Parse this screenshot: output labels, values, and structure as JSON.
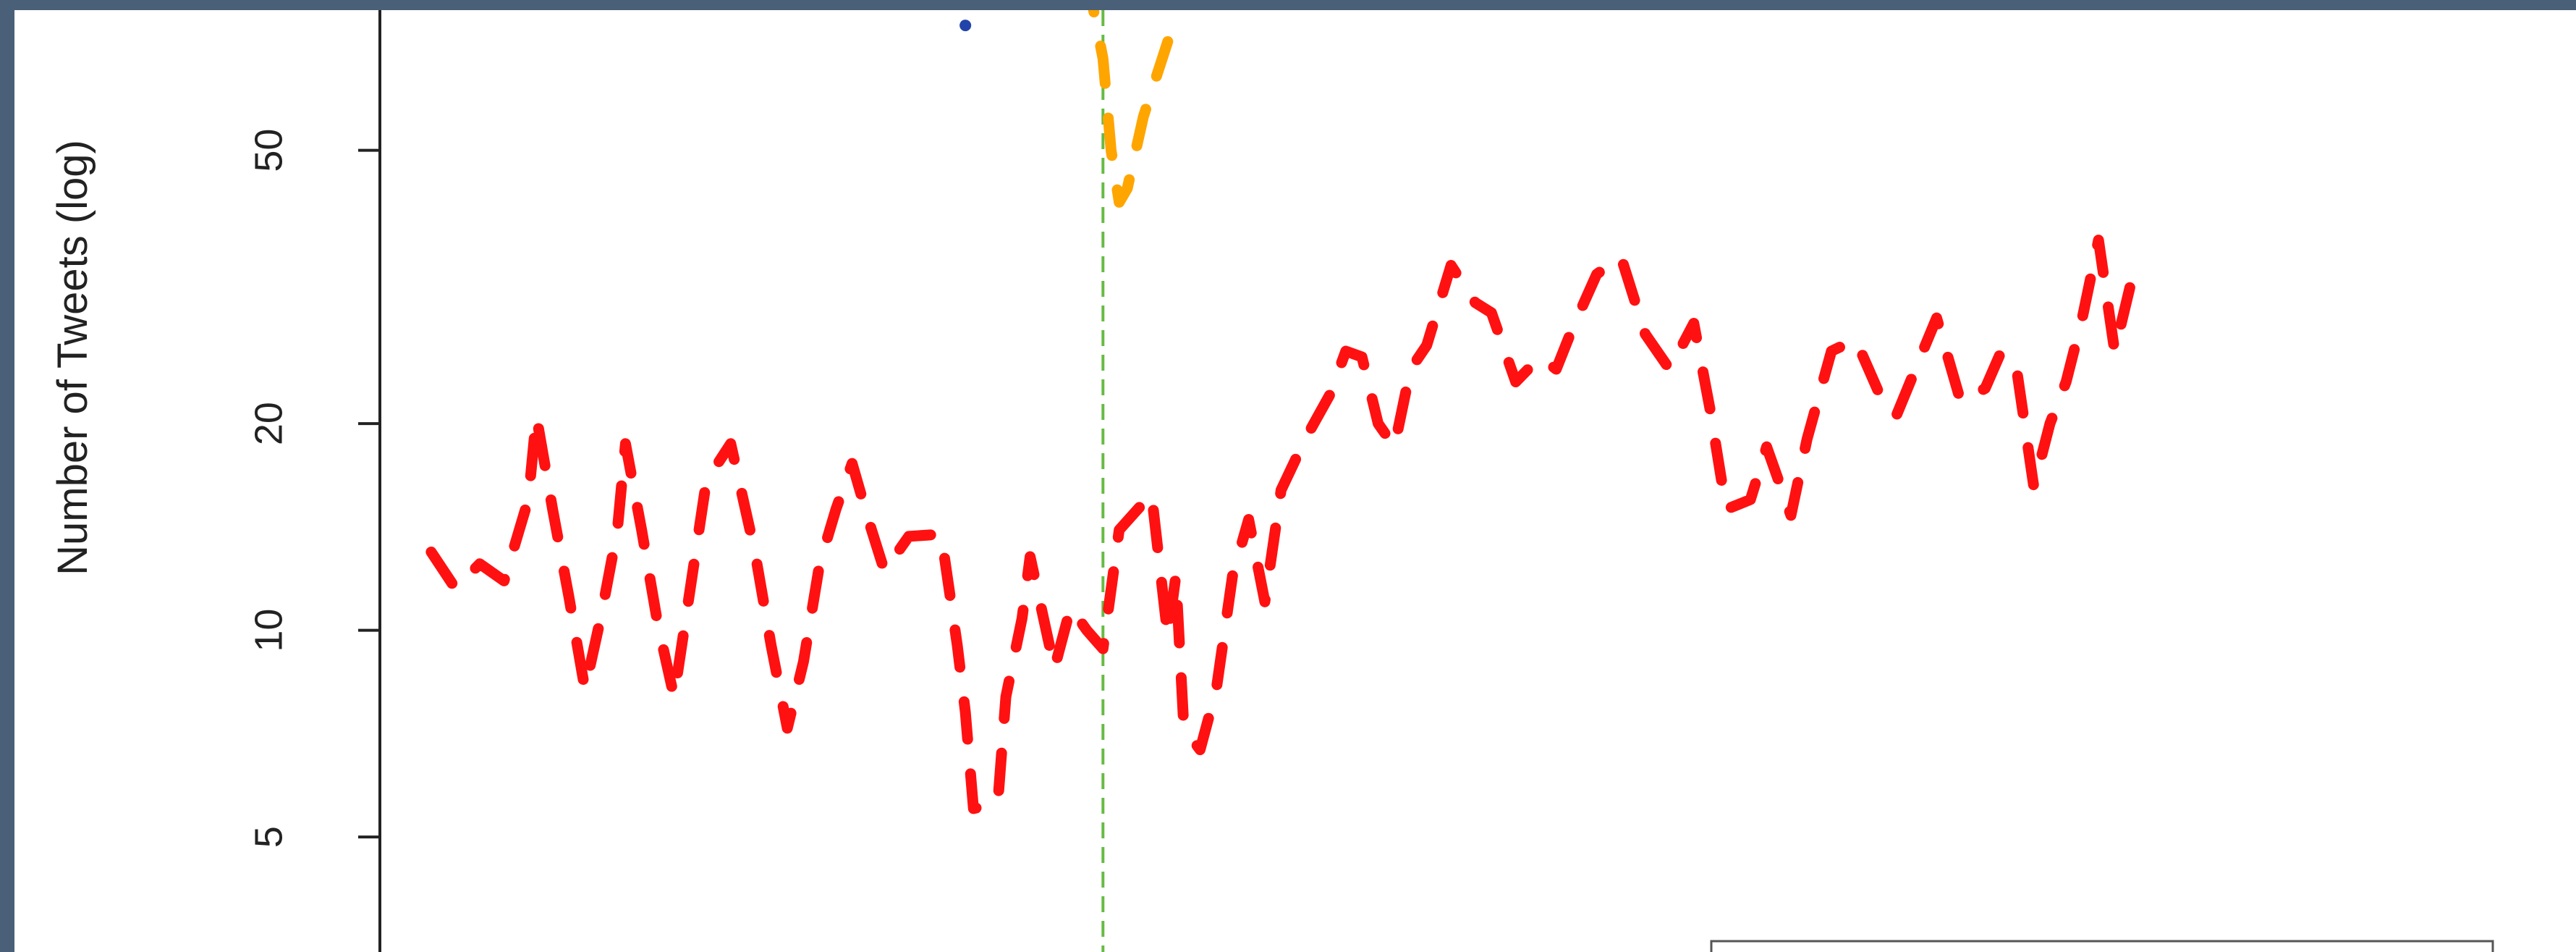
{
  "chart_data": {
    "type": "line",
    "ylabel": "Number of Tweets (log)",
    "yscale": "log",
    "ylim": [
      3.4,
      80
    ],
    "yticks": [
      {
        "value": 5,
        "label": "5"
      },
      {
        "value": 10,
        "label": "10"
      },
      {
        "value": 20,
        "label": "20"
      },
      {
        "value": 50,
        "label": "50"
      }
    ],
    "xlim": [
      0,
      270
    ],
    "event_marker": {
      "x": 88,
      "style": "dashed",
      "color": "#66bb44"
    },
    "legend_visible": "bottom-right, partially visible",
    "series": [
      {
        "color": "#ff1111",
        "style": "dashed",
        "values": [
          [
            5,
            13
          ],
          [
            8,
            11.5
          ],
          [
            11,
            12.5
          ],
          [
            14,
            11.8
          ],
          [
            17,
            15.5
          ],
          [
            18,
            20.5
          ],
          [
            20,
            15
          ],
          [
            22,
            11.2
          ],
          [
            24,
            8.2
          ],
          [
            26,
            10.5
          ],
          [
            28,
            14
          ],
          [
            29,
            18.7
          ],
          [
            31,
            14
          ],
          [
            33,
            10.2
          ],
          [
            35,
            8
          ],
          [
            37,
            11.5
          ],
          [
            39,
            16.5
          ],
          [
            42,
            18.7
          ],
          [
            45,
            13
          ],
          [
            47,
            9.5
          ],
          [
            49,
            7.2
          ],
          [
            51,
            9
          ],
          [
            53,
            12.5
          ],
          [
            55,
            15
          ],
          [
            57,
            17.5
          ],
          [
            59,
            14.5
          ],
          [
            61,
            12.2
          ],
          [
            64,
            13.7
          ],
          [
            68,
            13.8
          ],
          [
            70,
            9.5
          ],
          [
            71,
            7.6
          ],
          [
            72,
            5.5
          ],
          [
            75,
            5.6
          ],
          [
            76,
            8
          ],
          [
            78,
            10.4
          ],
          [
            79,
            12.8
          ],
          [
            82,
            8.8
          ],
          [
            84,
            10.8
          ],
          [
            86,
            10
          ],
          [
            88,
            9.4
          ],
          [
            90,
            14
          ],
          [
            94,
            15.8
          ],
          [
            96,
            9.8
          ],
          [
            97,
            12
          ],
          [
            98,
            7.2
          ],
          [
            100,
            6.7
          ],
          [
            102,
            8.2
          ],
          [
            104,
            12
          ],
          [
            106,
            14.5
          ],
          [
            108,
            11
          ],
          [
            110,
            16
          ],
          [
            113,
            19
          ],
          [
            116,
            22
          ],
          [
            118,
            25.5
          ],
          [
            120,
            25
          ],
          [
            122,
            20
          ],
          [
            124,
            18.5
          ],
          [
            126,
            24
          ],
          [
            128,
            26
          ],
          [
            131,
            34
          ],
          [
            134,
            30
          ],
          [
            136,
            29
          ],
          [
            139,
            23
          ],
          [
            142,
            25
          ],
          [
            144,
            24
          ],
          [
            146,
            27.5
          ],
          [
            149,
            33
          ],
          [
            152,
            35
          ],
          [
            155,
            27
          ],
          [
            158,
            24
          ],
          [
            161,
            28
          ],
          [
            163,
            21
          ],
          [
            165,
            15
          ],
          [
            168,
            15.5
          ],
          [
            170,
            18.5
          ],
          [
            173,
            14.7
          ],
          [
            175,
            19
          ],
          [
            178,
            25.5
          ],
          [
            181,
            26.5
          ],
          [
            184,
            22
          ],
          [
            186,
            20.5
          ],
          [
            189,
            25
          ],
          [
            191,
            28.5
          ],
          [
            194,
            21.5
          ],
          [
            197,
            22.5
          ],
          [
            199,
            25.5
          ],
          [
            201,
            23.5
          ],
          [
            203,
            16.2
          ],
          [
            205,
            20
          ],
          [
            207,
            23
          ],
          [
            209,
            28.5
          ],
          [
            211,
            37
          ],
          [
            213,
            25.5
          ],
          [
            215,
            32
          ]
        ]
      },
      {
        "color": "#ffa500",
        "style": "dashed",
        "values": [
          [
            86,
            90
          ],
          [
            88,
            68
          ],
          [
            89,
            50
          ],
          [
            90,
            42
          ],
          [
            91,
            44
          ],
          [
            93,
            56
          ],
          [
            96,
            72
          ]
        ]
      },
      {
        "color": "#2244aa",
        "style": "dotted",
        "values": [
          [
            71,
            76
          ],
          [
            73,
            74
          ]
        ]
      }
    ]
  }
}
